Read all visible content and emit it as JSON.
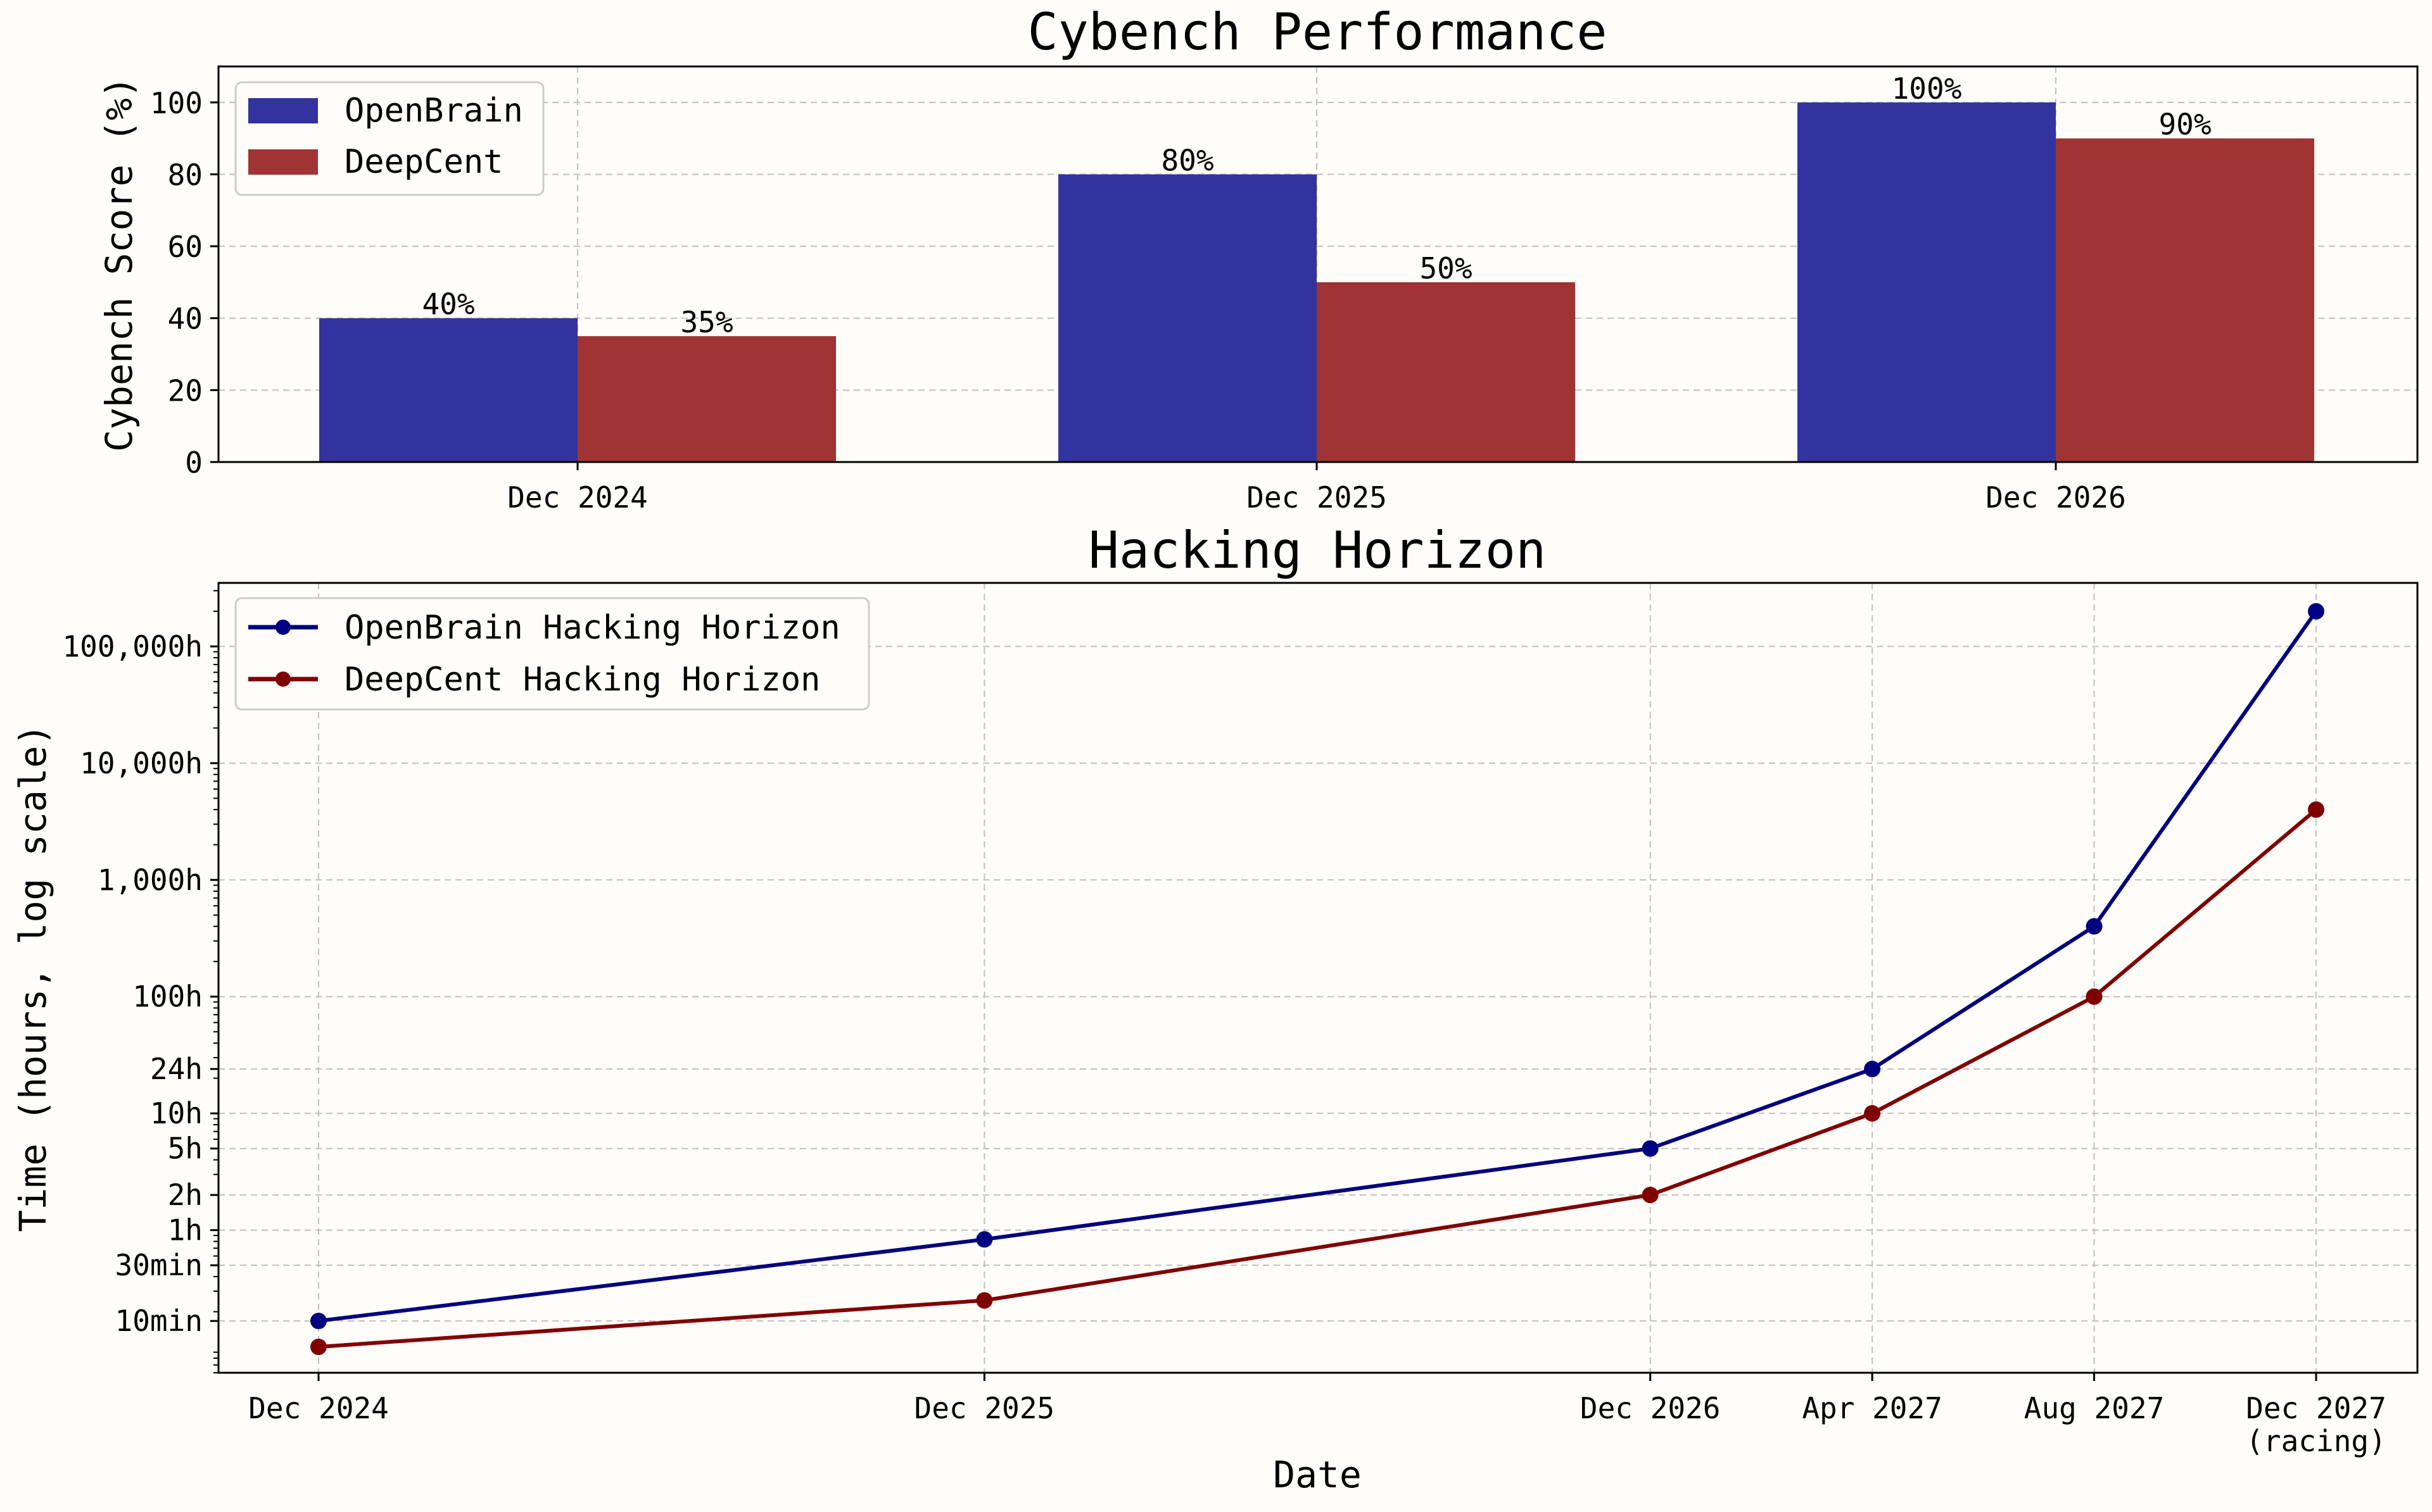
{
  "colors": {
    "background": "#fefdf9",
    "openbrain_bar": "#3333a0",
    "deepcent_bar": "#a03333",
    "openbrain_line": "#000080",
    "deepcent_line": "#800000",
    "grid": "#c0c0c0"
  },
  "chart_data": [
    {
      "type": "bar",
      "title": "Cybench Performance",
      "ylabel": "Cybench Score (%)",
      "xlabel": "",
      "categories": [
        "Dec 2024",
        "Dec 2025",
        "Dec 2026"
      ],
      "series": [
        {
          "name": "OpenBrain",
          "values": [
            40,
            80,
            100
          ],
          "labels": [
            "40%",
            "80%",
            "100%"
          ]
        },
        {
          "name": "DeepCent",
          "values": [
            35,
            50,
            90
          ],
          "labels": [
            "35%",
            "50%",
            "90%"
          ]
        }
      ],
      "ylim": [
        0,
        110
      ],
      "yticks": [
        0,
        20,
        40,
        60,
        80,
        100
      ],
      "ytick_labels": [
        "0",
        "20",
        "40",
        "60",
        "80",
        "100"
      ],
      "grid": true,
      "legend_position": "upper-left"
    },
    {
      "type": "line",
      "title": "Hacking Horizon",
      "ylabel": "Time (hours, log scale)",
      "xlabel": "Date",
      "yscale": "log",
      "x": [
        "2024-12",
        "2025-12",
        "2026-12",
        "2027-04",
        "2027-08",
        "2027-12"
      ],
      "x_tick_labels": [
        "Dec 2024",
        "Dec 2025",
        "Dec 2026",
        "Apr 2027",
        "Aug 2027",
        "Dec 2027\n(racing)"
      ],
      "series": [
        {
          "name": "OpenBrain Hacking Horizon",
          "values": [
            0.1667,
            0.833,
            5,
            24,
            400,
            200000
          ]
        },
        {
          "name": "DeepCent Hacking Horizon",
          "values": [
            0.1,
            0.25,
            2,
            10,
            100,
            4000
          ]
        }
      ],
      "ylim": [
        0.06,
        350000
      ],
      "yticks": [
        0.1667,
        0.5,
        1,
        2,
        5,
        10,
        24,
        100,
        1000,
        10000,
        100000
      ],
      "ytick_labels": [
        "10min",
        "30min",
        "1h",
        "2h",
        "5h",
        "10h",
        "24h",
        "100h",
        "1,000h",
        "10,000h",
        "100,000h"
      ],
      "grid": true,
      "legend_position": "upper-left"
    }
  ]
}
